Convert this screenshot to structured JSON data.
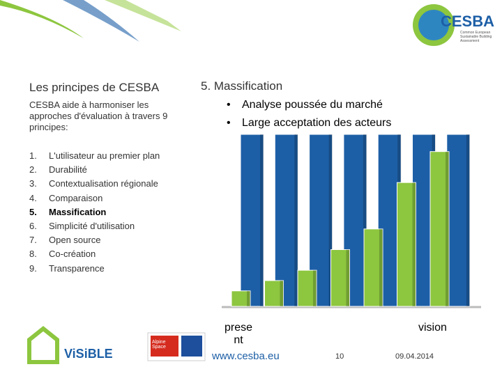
{
  "header": {
    "logo": "CESBA",
    "logo_subtitle": "Common European Sustainable Building Assessment"
  },
  "left": {
    "title": "Les principes de CESBA",
    "intro": "CESBA aide à harmoniser les approches d'évaluation à travers 9 principes:",
    "items": [
      {
        "number": "1.",
        "text": "L'utilisateur au premier plan"
      },
      {
        "number": "2.",
        "text": "Durabilité"
      },
      {
        "number": "3.",
        "text": "Contextualisation régionale"
      },
      {
        "number": "4.",
        "text": "Comparaison"
      },
      {
        "number": "5.",
        "text": "Massification",
        "bold": true
      },
      {
        "number": "6.",
        "text": "Simplicité d'utilisation"
      },
      {
        "number": "7.",
        "text": "Open source"
      },
      {
        "number": "8.",
        "text": "Co-création"
      },
      {
        "number": "9.",
        "text": "Transparence"
      }
    ]
  },
  "right": {
    "title": "5. Massification",
    "bullets": [
      "Analyse poussée du marché",
      "Large acceptation des acteurs"
    ],
    "chart": {
      "type": "bar",
      "ylim": [
        0,
        100
      ],
      "series": [
        {
          "color": "#1d5fa6",
          "values": [
            100,
            100,
            100,
            100,
            100,
            100,
            100
          ]
        },
        {
          "color": "#8dc63f",
          "values": [
            9,
            15,
            21,
            33,
            45,
            72,
            90
          ]
        }
      ]
    },
    "start_label": "prese\nnt",
    "end_label": "vision"
  },
  "footer": {
    "url": "www.cesba.eu",
    "page": "10",
    "date": "09.04.2014",
    "partner": "ViSiBLE",
    "partner2": "Alpine Space"
  }
}
